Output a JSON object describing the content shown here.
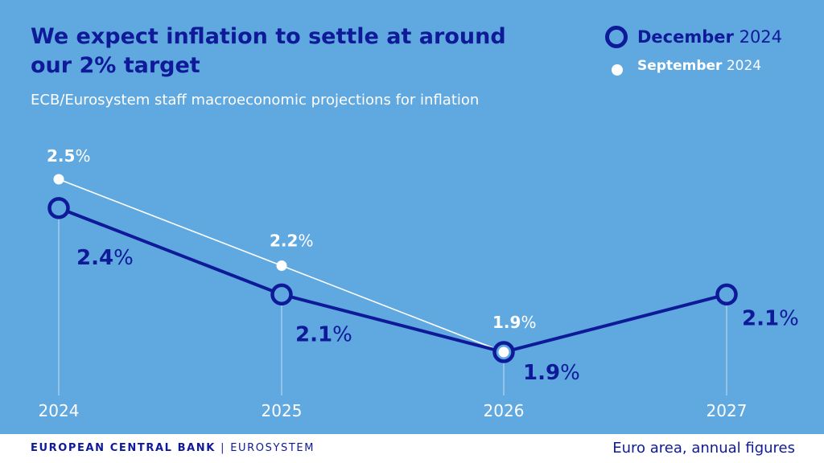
{
  "header": {
    "title": "We expect inflation to settle at around our 2% target",
    "subtitle": "ECB/Eurosystem staff macroeconomic projections for inflation"
  },
  "legend": {
    "december": {
      "bold": "December",
      "year": "2024"
    },
    "september": {
      "bold": "September",
      "year": "2024"
    }
  },
  "footer": {
    "brand": "EUROPEAN CENTRAL BANK",
    "divider": "|",
    "brand_sub": "EUROSYSTEM",
    "note": "Euro area, annual figures"
  },
  "colors": {
    "background": "#5fa8e0",
    "december": "#0f1a99",
    "september": "#ffffff",
    "gridline": "#c4e0f4"
  },
  "chart_data": {
    "type": "line",
    "x": [
      "2024",
      "2025",
      "2026",
      "2027"
    ],
    "unit": "%",
    "ylim": [
      1.6,
      2.6
    ],
    "series": [
      {
        "name": "September 2024",
        "values": [
          2.5,
          2.2,
          1.9,
          null
        ],
        "labels": [
          "2.5",
          "2.2",
          "1.9",
          null
        ]
      },
      {
        "name": "December 2024",
        "values": [
          2.4,
          2.1,
          1.9,
          2.1
        ],
        "labels": [
          "2.4",
          "2.1",
          "1.9",
          "2.1"
        ]
      }
    ]
  }
}
